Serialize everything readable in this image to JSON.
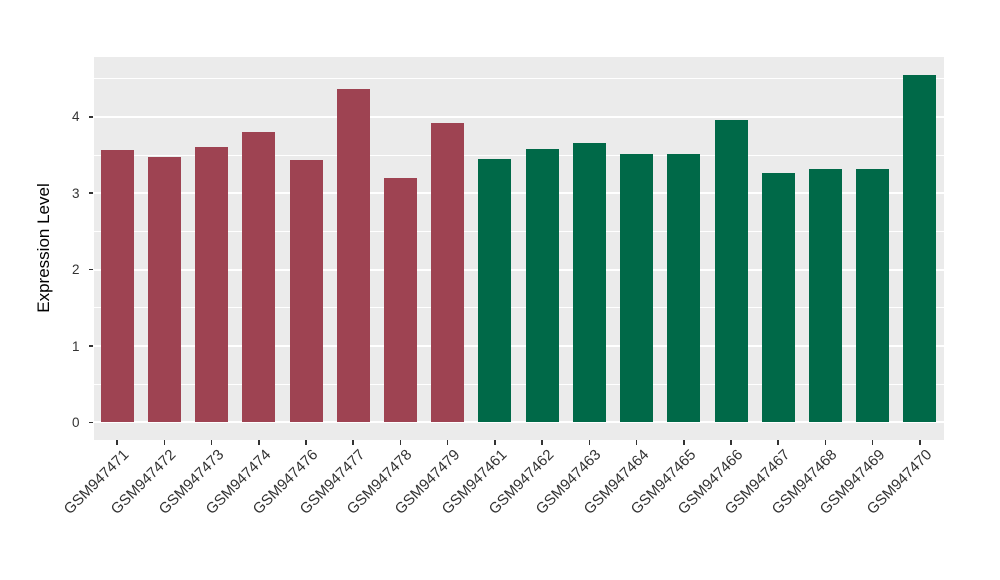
{
  "chart_data": {
    "type": "bar",
    "title": "",
    "xlabel": "",
    "ylabel": "Expression Level",
    "categories": [
      "GSM947471",
      "GSM947472",
      "GSM947473",
      "GSM947474",
      "GSM947476",
      "GSM947477",
      "GSM947478",
      "GSM947479",
      "GSM947461",
      "GSM947462",
      "GSM947463",
      "GSM947464",
      "GSM947465",
      "GSM947466",
      "GSM947467",
      "GSM947468",
      "GSM947469",
      "GSM947470"
    ],
    "values": [
      3.56,
      3.47,
      3.61,
      3.8,
      3.44,
      4.37,
      3.2,
      3.92,
      3.45,
      3.58,
      3.66,
      3.51,
      3.51,
      3.96,
      3.27,
      3.32,
      3.32,
      4.55
    ],
    "bar_colors": [
      "#9E4352",
      "#9E4352",
      "#9E4352",
      "#9E4352",
      "#9E4352",
      "#9E4352",
      "#9E4352",
      "#9E4352",
      "#006948",
      "#006948",
      "#006948",
      "#006948",
      "#006948",
      "#006948",
      "#006948",
      "#006948",
      "#006948",
      "#006948"
    ],
    "group_colors": {
      "left_group": "#9E4352",
      "right_group": "#006948"
    },
    "yticks": [
      0,
      1,
      2,
      3,
      4
    ],
    "minor_yticks": [
      0.5,
      1.5,
      2.5,
      3.5,
      4.5
    ],
    "ylim": [
      -0.23,
      4.79
    ],
    "grid": true,
    "legend": "none",
    "panel_background": "#EBEBEB",
    "grid_color": "#FFFFFF",
    "axis_text_color": "#333333"
  }
}
